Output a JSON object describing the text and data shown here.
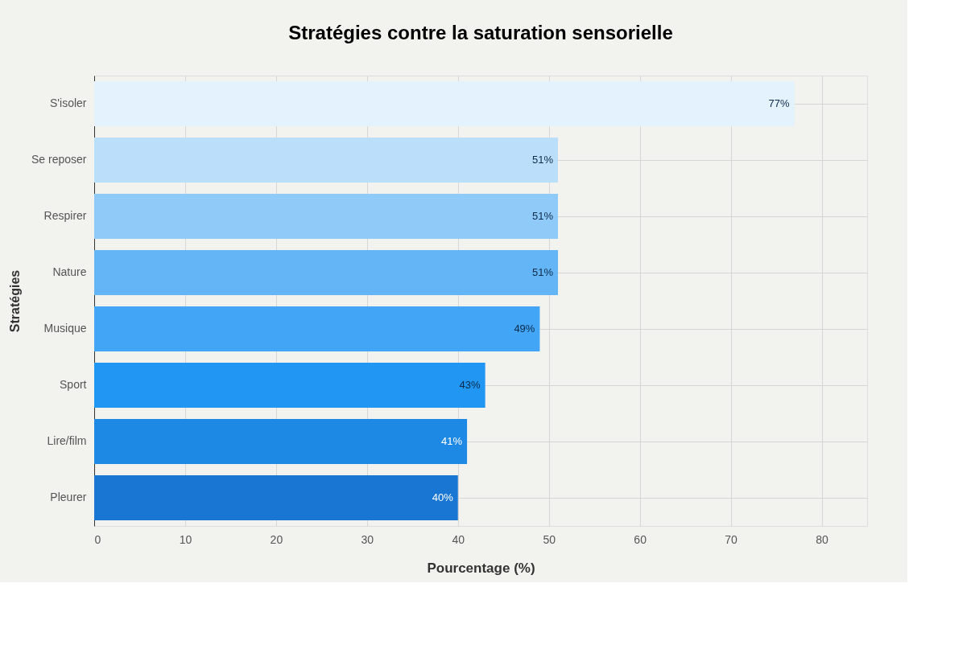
{
  "chart_data": {
    "type": "bar",
    "orientation": "horizontal",
    "title": "Stratégies contre la saturation sensorielle",
    "xlabel": "Pourcentage (%)",
    "ylabel": "Stratégies",
    "categories": [
      "S'isoler",
      "Se reposer",
      "Respirer",
      "Nature",
      "Musique",
      "Sport",
      "Lire/film",
      "Pleurer"
    ],
    "values": [
      77,
      51,
      51,
      51,
      49,
      43,
      41,
      40
    ],
    "colors": [
      "#e3f2fd",
      "#bbdefb",
      "#90caf9",
      "#64b5f6",
      "#42a5f5",
      "#2196f3",
      "#1e88e5",
      "#1976d2"
    ],
    "value_labels": [
      "77%",
      "51%",
      "51%",
      "51%",
      "49%",
      "43%",
      "41%",
      "40%"
    ],
    "xlim": [
      0,
      85
    ],
    "xticks": [
      0,
      10,
      20,
      30,
      40,
      50,
      60,
      70,
      80
    ],
    "grid": true
  }
}
